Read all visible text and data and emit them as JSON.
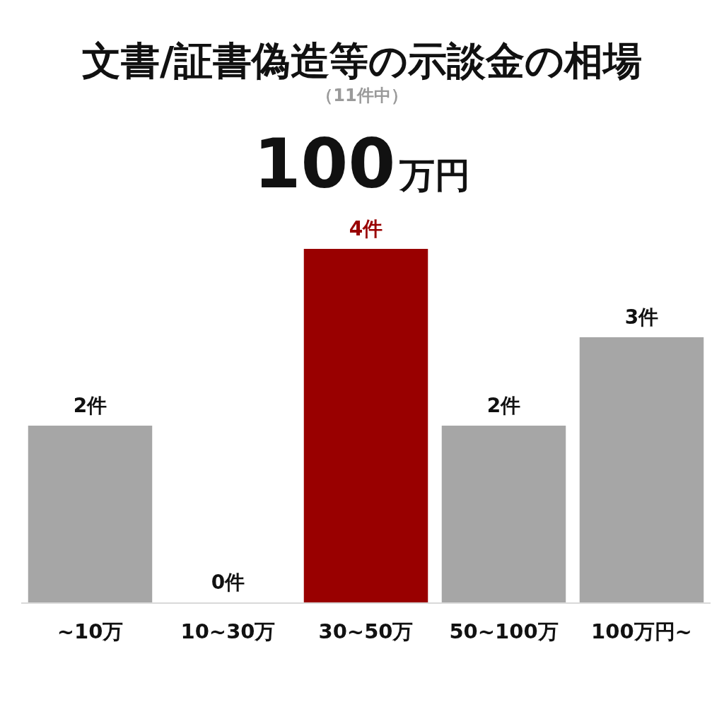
{
  "chart_data": {
    "type": "bar",
    "title": "文書/証書偽造等の示談金の相場",
    "subtitle": "（11件中）",
    "annotations": [
      "100万円"
    ],
    "categories": [
      "~10万",
      "10~30万",
      "30~50万",
      "50~100万",
      "100万円~"
    ],
    "values": [
      2,
      0,
      4,
      2,
      3
    ],
    "value_labels": [
      "2件",
      "0件",
      "4件",
      "2件",
      "3件"
    ],
    "colors": [
      "#a6a6a6",
      "#a6a6a6",
      "#990000",
      "#a6a6a6",
      "#a6a6a6"
    ]
  }
}
